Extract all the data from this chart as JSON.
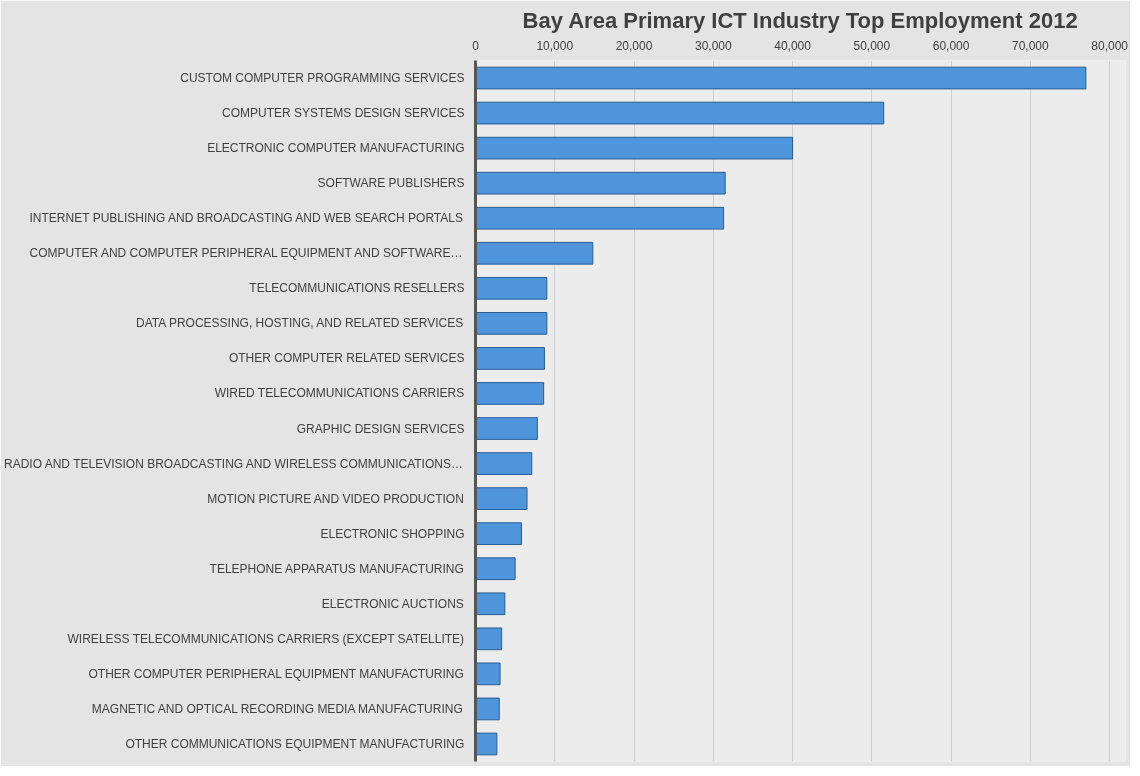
{
  "chart_data": {
    "type": "bar",
    "orientation": "horizontal",
    "title": "Bay Area Primary ICT Industry Top Employment 2012",
    "categories": [
      "CUSTOM COMPUTER PROGRAMMING SERVICES",
      "COMPUTER SYSTEMS DESIGN SERVICES",
      "ELECTRONIC COMPUTER MANUFACTURING",
      "SOFTWARE PUBLISHERS",
      "INTERNET PUBLISHING AND BROADCASTING AND WEB SEARCH PORTALS",
      "COMPUTER AND COMPUTER PERIPHERAL EQUIPMENT AND SOFTWARE…",
      "TELECOMMUNICATIONS RESELLERS",
      "DATA PROCESSING, HOSTING, AND RELATED SERVICES",
      "OTHER COMPUTER RELATED SERVICES",
      "WIRED TELECOMMUNICATIONS CARRIERS",
      "GRAPHIC DESIGN SERVICES",
      "RADIO AND TELEVISION BROADCASTING AND WIRELESS COMMUNICATIONS…",
      "MOTION PICTURE AND VIDEO PRODUCTION",
      "ELECTRONIC SHOPPING",
      "TELEPHONE APPARATUS MANUFACTURING",
      "ELECTRONIC AUCTIONS",
      "WIRELESS TELECOMMUNICATIONS CARRIERS (EXCEPT SATELLITE)",
      "OTHER COMPUTER PERIPHERAL EQUIPMENT MANUFACTURING",
      "MAGNETIC AND OPTICAL RECORDING MEDIA MANUFACTURING",
      "OTHER COMMUNICATIONS EQUIPMENT MANUFACTURING"
    ],
    "values": [
      77000,
      51500,
      40000,
      31500,
      31300,
      14800,
      9000,
      9000,
      8700,
      8600,
      7800,
      7100,
      6500,
      5800,
      5000,
      3700,
      3300,
      3100,
      3000,
      2700
    ],
    "color": "#4f95dc",
    "xlim": [
      0,
      82000
    ],
    "xticks": [
      {
        "value": 0,
        "label": "0"
      },
      {
        "value": 10000,
        "label": "10,000"
      },
      {
        "value": 20000,
        "label": "20,000"
      },
      {
        "value": 30000,
        "label": "30,000"
      },
      {
        "value": 40000,
        "label": "40,000"
      },
      {
        "value": 50000,
        "label": "50,000"
      },
      {
        "value": 60000,
        "label": "60,000"
      },
      {
        "value": 70000,
        "label": "70,000"
      },
      {
        "value": 80000,
        "label": "80,000"
      }
    ],
    "grid": "x"
  }
}
